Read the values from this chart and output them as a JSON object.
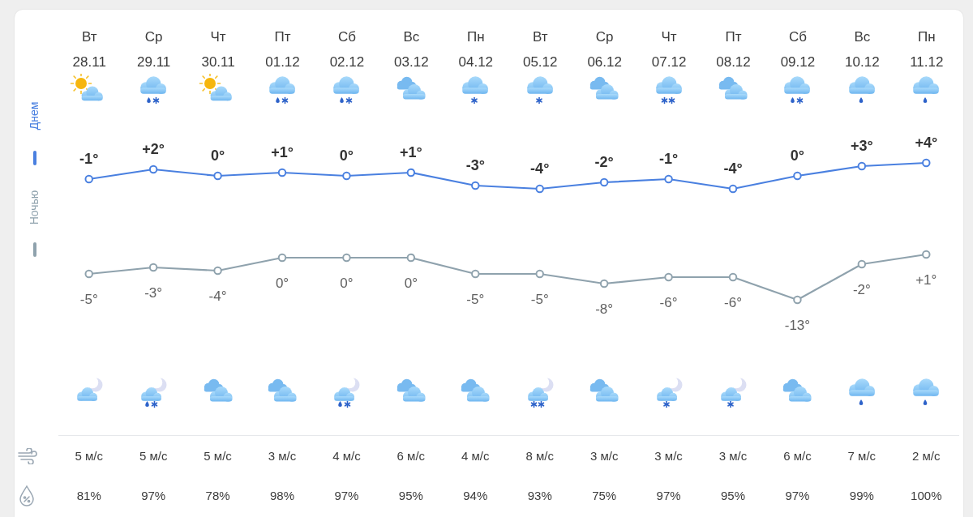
{
  "chart_data": [
    {
      "type": "line",
      "categories": [
        "Вт\n28.11",
        "Ср\n29.11",
        "Чт\n30.11",
        "Пт\n01.12",
        "Сб\n02.12",
        "Вс\n03.12",
        "Пн\n04.12",
        "Вт\n05.12",
        "Ср\n06.12",
        "Чт\n07.12",
        "Пт\n08.12",
        "Сб\n09.12",
        "Вс\n10.12",
        "Пн\n11.12"
      ],
      "series": [
        {
          "name": "Днем",
          "color": "#4a80e0",
          "values": [
            -1,
            2,
            0,
            1,
            0,
            1,
            -3,
            -4,
            -2,
            -1,
            -4,
            0,
            3,
            4
          ],
          "value_labels": [
            "-1°",
            "+2°",
            "0°",
            "+1°",
            "0°",
            "+1°",
            "-3°",
            "-4°",
            "-2°",
            "-1°",
            "-4°",
            "0°",
            "+3°",
            "+4°"
          ]
        }
      ],
      "tick_labels": "x",
      "legend": "left",
      "marker": "circle"
    },
    {
      "type": "line",
      "categories": [
        null,
        null,
        null,
        null,
        null,
        null,
        null,
        null,
        null,
        null,
        null,
        null,
        null,
        null
      ],
      "series": [
        {
          "name": "Ночью",
          "color": "#8fa2ad",
          "values": [
            -5,
            -3,
            -4,
            0,
            0,
            0,
            -5,
            -5,
            -8,
            -6,
            -6,
            -13,
            -2,
            1
          ],
          "value_labels": [
            "-5°",
            "-3°",
            "-4°",
            "0°",
            "0°",
            "0°",
            "-5°",
            "-5°",
            "-8°",
            "-6°",
            "-6°",
            "-13°",
            "-2°",
            "+1°"
          ]
        }
      ],
      "tick_labels": false,
      "legend": "left",
      "marker": "circle"
    },
    {
      "type": "other",
      "values": [
        5,
        5,
        5,
        3,
        4,
        6,
        4,
        8,
        3,
        3,
        3,
        6,
        7,
        2
      ],
      "value_labels": [
        "5 м/с",
        "5 м/с",
        "5 м/с",
        "3 м/с",
        "4 м/с",
        "6 м/с",
        "4 м/с",
        "8 м/с",
        "3 м/с",
        "3 м/с",
        "3 м/с",
        "6 м/с",
        "7 м/с",
        "2 м/с"
      ]
    },
    {
      "type": "other",
      "values": [
        81,
        97,
        78,
        98,
        97,
        95,
        94,
        93,
        75,
        97,
        95,
        97,
        99,
        100
      ],
      "value_labels": [
        "81%",
        "97%",
        "78%",
        "98%",
        "97%",
        "95%",
        "94%",
        "93%",
        "75%",
        "97%",
        "95%",
        "97%",
        "99%",
        "100%"
      ]
    }
  ]
}
